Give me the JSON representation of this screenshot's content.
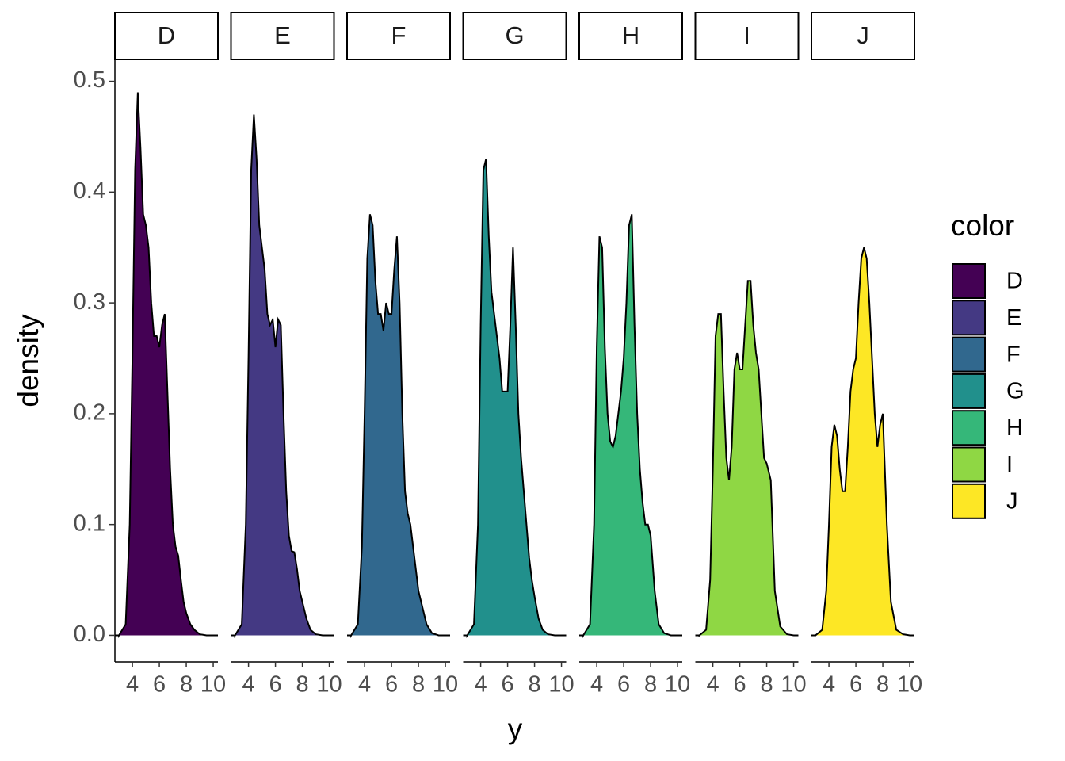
{
  "chart_data": {
    "type": "density",
    "x_label": "y",
    "y_label": "density",
    "legend_title": "color",
    "x": [
      3.0,
      3.5,
      3.8,
      4.0,
      4.2,
      4.4,
      4.6,
      4.8,
      5.0,
      5.2,
      5.4,
      5.6,
      5.8,
      6.0,
      6.2,
      6.4,
      6.6,
      6.8,
      7.0,
      7.2,
      7.4,
      7.6,
      7.8,
      8.0,
      8.3,
      8.6,
      9.0,
      9.5,
      10.0
    ],
    "series": [
      {
        "name": "D",
        "color": "#440154",
        "values": [
          0,
          0.01,
          0.1,
          0.25,
          0.42,
          0.49,
          0.44,
          0.38,
          0.37,
          0.35,
          0.3,
          0.27,
          0.27,
          0.26,
          0.28,
          0.29,
          0.22,
          0.15,
          0.1,
          0.08,
          0.072,
          0.05,
          0.03,
          0.02,
          0.01,
          0.005,
          0.001,
          0,
          0
        ]
      },
      {
        "name": "E",
        "color": "#443983",
        "values": [
          0,
          0.01,
          0.1,
          0.25,
          0.42,
          0.47,
          0.43,
          0.37,
          0.35,
          0.33,
          0.29,
          0.28,
          0.285,
          0.26,
          0.285,
          0.28,
          0.2,
          0.13,
          0.09,
          0.076,
          0.075,
          0.06,
          0.04,
          0.03,
          0.015,
          0.005,
          0.001,
          0,
          0
        ]
      },
      {
        "name": "F",
        "color": "#31688e",
        "values": [
          0,
          0.01,
          0.08,
          0.2,
          0.34,
          0.38,
          0.37,
          0.32,
          0.29,
          0.29,
          0.275,
          0.3,
          0.29,
          0.29,
          0.33,
          0.36,
          0.3,
          0.2,
          0.13,
          0.11,
          0.1,
          0.08,
          0.06,
          0.04,
          0.025,
          0.01,
          0.002,
          0,
          0
        ]
      },
      {
        "name": "G",
        "color": "#21908c",
        "values": [
          0,
          0.01,
          0.1,
          0.28,
          0.42,
          0.43,
          0.36,
          0.31,
          0.29,
          0.27,
          0.25,
          0.22,
          0.22,
          0.22,
          0.28,
          0.35,
          0.28,
          0.2,
          0.16,
          0.13,
          0.1,
          0.07,
          0.05,
          0.035,
          0.015,
          0.005,
          0.001,
          0,
          0
        ]
      },
      {
        "name": "H",
        "color": "#35b779",
        "values": [
          0,
          0.01,
          0.1,
          0.26,
          0.36,
          0.35,
          0.26,
          0.2,
          0.175,
          0.17,
          0.18,
          0.2,
          0.22,
          0.25,
          0.3,
          0.37,
          0.38,
          0.28,
          0.2,
          0.15,
          0.12,
          0.1,
          0.1,
          0.09,
          0.04,
          0.01,
          0.002,
          0,
          0
        ]
      },
      {
        "name": "I",
        "color": "#8fd744",
        "values": [
          0,
          0.005,
          0.05,
          0.15,
          0.27,
          0.29,
          0.29,
          0.22,
          0.16,
          0.14,
          0.17,
          0.24,
          0.255,
          0.24,
          0.24,
          0.28,
          0.32,
          0.32,
          0.28,
          0.255,
          0.24,
          0.2,
          0.16,
          0.155,
          0.14,
          0.04,
          0.008,
          0.001,
          0
        ]
      },
      {
        "name": "J",
        "color": "#fde725",
        "values": [
          0,
          0.005,
          0.04,
          0.1,
          0.17,
          0.19,
          0.18,
          0.15,
          0.13,
          0.13,
          0.17,
          0.22,
          0.24,
          0.25,
          0.3,
          0.34,
          0.35,
          0.34,
          0.3,
          0.25,
          0.2,
          0.17,
          0.19,
          0.2,
          0.1,
          0.03,
          0.005,
          0.001,
          0
        ]
      }
    ],
    "xlim": [
      2.7,
      10.35
    ],
    "xticks": [
      4,
      6,
      8,
      10
    ],
    "ylim": [
      -0.024,
      0.519
    ],
    "yticks": [
      {
        "value": 0,
        "label": "0.0"
      },
      0.1,
      0.2,
      0.3,
      0.4,
      0.5
    ],
    "grid": false
  }
}
